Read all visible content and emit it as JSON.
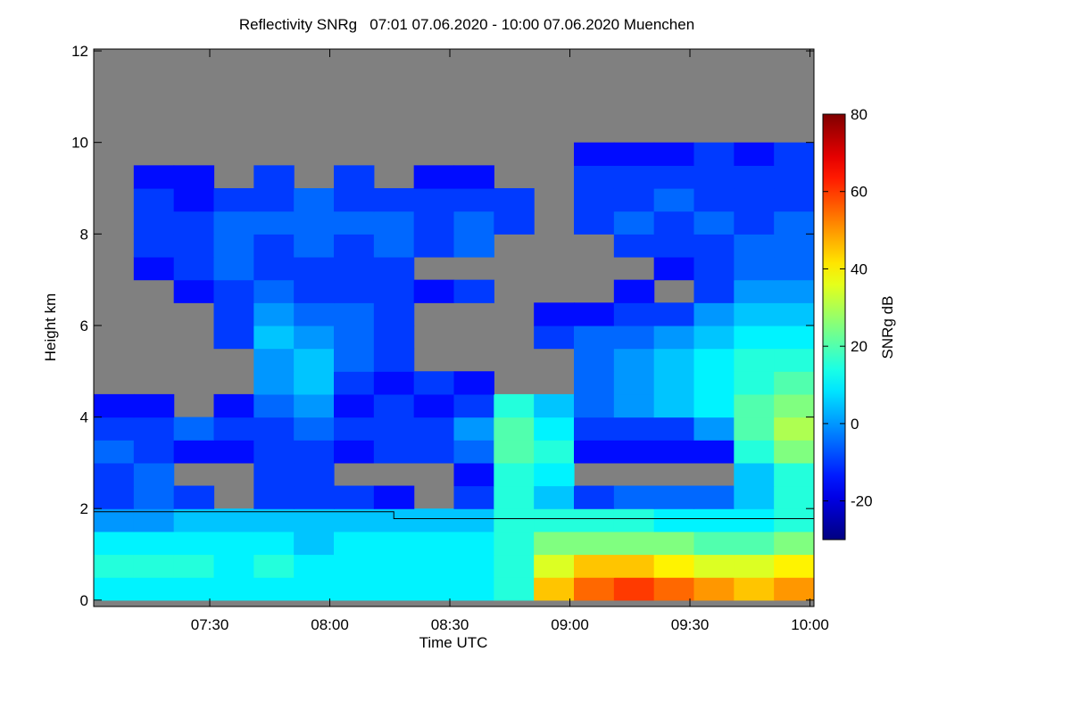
{
  "chart_data": {
    "type": "heatmap",
    "title": "Reflectivity SNRg   07:01 07.06.2020 - 10:00 07.06.2020 Muenchen",
    "x_label": "Time UTC",
    "y_label": "Height km",
    "colorbar_label": "SNRg dB",
    "colormap": "jet",
    "background_color": "#808080",
    "xlim": [
      421,
      601
    ],
    "xticks": [
      {
        "value": 450,
        "label": "07:30"
      },
      {
        "value": 480,
        "label": "08:00"
      },
      {
        "value": 510,
        "label": "08:30"
      },
      {
        "value": 540,
        "label": "09:00"
      },
      {
        "value": 570,
        "label": "09:30"
      },
      {
        "value": 600,
        "label": "10:00"
      }
    ],
    "ylim": [
      -0.14,
      12.04
    ],
    "yticks": [
      0,
      2,
      4,
      6,
      8,
      10,
      12
    ],
    "clim": [
      -30,
      80
    ],
    "cticks": [
      -20,
      0,
      20,
      40,
      60,
      80
    ],
    "x_bins": [
      421,
      431,
      441,
      451,
      461,
      471,
      481,
      491,
      501,
      511,
      521,
      531,
      541,
      551,
      561,
      571,
      581,
      591,
      601
    ],
    "y_bins": [
      0,
      0.5,
      1,
      1.5,
      2,
      2.5,
      3,
      3.5,
      4,
      4.5,
      5,
      5.5,
      6,
      6.5,
      7,
      7.5,
      8,
      8.5,
      9,
      9.5,
      10
    ],
    "z": [
      [
        10,
        10,
        10,
        10,
        10,
        10,
        10,
        10,
        10,
        10,
        15,
        45,
        55,
        60,
        55,
        50,
        45,
        50
      ],
      [
        15,
        15,
        15,
        10,
        15,
        10,
        10,
        10,
        10,
        10,
        15,
        35,
        45,
        45,
        40,
        35,
        35,
        40
      ],
      [
        10,
        10,
        10,
        10,
        10,
        5,
        10,
        10,
        10,
        10,
        15,
        25,
        25,
        25,
        25,
        20,
        20,
        25
      ],
      [
        0,
        0,
        5,
        5,
        5,
        5,
        5,
        5,
        5,
        5,
        15,
        15,
        15,
        15,
        10,
        10,
        10,
        15
      ],
      [
        -10,
        -5,
        -10,
        null,
        -10,
        -10,
        -10,
        -15,
        null,
        -10,
        15,
        5,
        -10,
        -5,
        -5,
        -5,
        5,
        15
      ],
      [
        -10,
        -5,
        null,
        null,
        -10,
        -10,
        null,
        null,
        null,
        -15,
        15,
        10,
        null,
        null,
        null,
        null,
        5,
        15
      ],
      [
        -5,
        -10,
        -15,
        -15,
        -10,
        -10,
        -15,
        -10,
        -10,
        -5,
        20,
        15,
        -15,
        -15,
        -15,
        -15,
        15,
        25
      ],
      [
        -10,
        -10,
        -5,
        -10,
        -10,
        -5,
        -10,
        -10,
        -10,
        0,
        20,
        10,
        -10,
        -10,
        -10,
        0,
        20,
        30
      ],
      [
        -15,
        -15,
        null,
        -15,
        -5,
        0,
        -15,
        -10,
        -15,
        -10,
        15,
        5,
        -5,
        0,
        5,
        10,
        20,
        25
      ],
      [
        null,
        null,
        null,
        null,
        0,
        5,
        -10,
        -15,
        -10,
        -15,
        null,
        null,
        -5,
        0,
        5,
        10,
        15,
        20
      ],
      [
        null,
        null,
        null,
        null,
        0,
        5,
        -5,
        -10,
        null,
        null,
        null,
        null,
        -5,
        0,
        5,
        10,
        15,
        15
      ],
      [
        null,
        null,
        null,
        -10,
        5,
        0,
        -5,
        -10,
        null,
        null,
        null,
        -10,
        -5,
        -5,
        0,
        5,
        10,
        10
      ],
      [
        null,
        null,
        null,
        -10,
        0,
        -5,
        -5,
        -10,
        null,
        null,
        null,
        -15,
        -15,
        -10,
        -10,
        0,
        5,
        5
      ],
      [
        null,
        null,
        -15,
        -10,
        -5,
        -10,
        -10,
        -10,
        -15,
        -10,
        null,
        null,
        null,
        -15,
        null,
        -10,
        0,
        0
      ],
      [
        null,
        -15,
        -10,
        -5,
        -10,
        -10,
        -10,
        -10,
        null,
        null,
        null,
        null,
        null,
        null,
        -15,
        -10,
        -5,
        -5
      ],
      [
        null,
        -10,
        -10,
        -5,
        -10,
        -5,
        -10,
        -5,
        -10,
        -5,
        null,
        null,
        null,
        -10,
        -10,
        -10,
        -5,
        -5
      ],
      [
        null,
        -10,
        -10,
        -5,
        -5,
        -5,
        -5,
        -5,
        -10,
        -5,
        -10,
        null,
        -10,
        -5,
        -10,
        -5,
        -10,
        -5
      ],
      [
        null,
        -10,
        -15,
        -10,
        -10,
        -5,
        -10,
        -10,
        -10,
        -10,
        -10,
        null,
        -10,
        -10,
        -5,
        -10,
        -10,
        -10
      ],
      [
        null,
        -15,
        -15,
        null,
        -10,
        null,
        -10,
        null,
        -15,
        -15,
        null,
        null,
        -10,
        -10,
        -10,
        -10,
        -10,
        -10
      ],
      [
        null,
        null,
        null,
        null,
        null,
        null,
        null,
        null,
        null,
        null,
        null,
        null,
        -15,
        -15,
        -15,
        -10,
        -15,
        -10
      ]
    ],
    "reference_line": {
      "color": "#000000",
      "x": [
        421,
        496,
        496,
        601
      ],
      "y": [
        1.93,
        1.93,
        1.78,
        1.78
      ]
    }
  }
}
